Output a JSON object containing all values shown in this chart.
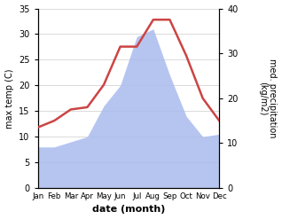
{
  "months": [
    "Jan",
    "Feb",
    "Mar",
    "Apr",
    "May",
    "Jun",
    "Jul",
    "Aug",
    "Sep",
    "Oct",
    "Nov",
    "Dec"
  ],
  "temp_max": [
    13.5,
    15.0,
    17.5,
    18.0,
    23.0,
    31.5,
    31.5,
    37.5,
    37.5,
    29.5,
    20.0,
    15.0
  ],
  "precipitation": [
    8.0,
    8.0,
    9.0,
    10.0,
    16.0,
    20.0,
    29.5,
    31.0,
    22.0,
    14.0,
    10.0,
    10.5
  ],
  "temp_ylim": [
    0,
    40
  ],
  "precip_ylim": [
    0,
    35
  ],
  "temp_yticks": [
    0,
    10,
    20,
    30,
    40
  ],
  "precip_yticks": [
    0,
    5,
    10,
    15,
    20,
    25,
    30,
    35
  ],
  "xlabel": "date (month)",
  "ylabel_left": "max temp (C)",
  "ylabel_right": "med. precipitation\n(kg/m2)",
  "temp_color": "#cc4444",
  "precip_fill_color": "#aabbee",
  "precip_fill_alpha": 0.85,
  "background_color": "#ffffff",
  "grid_color": "#cccccc",
  "figsize": [
    3.18,
    2.47
  ],
  "dpi": 100
}
